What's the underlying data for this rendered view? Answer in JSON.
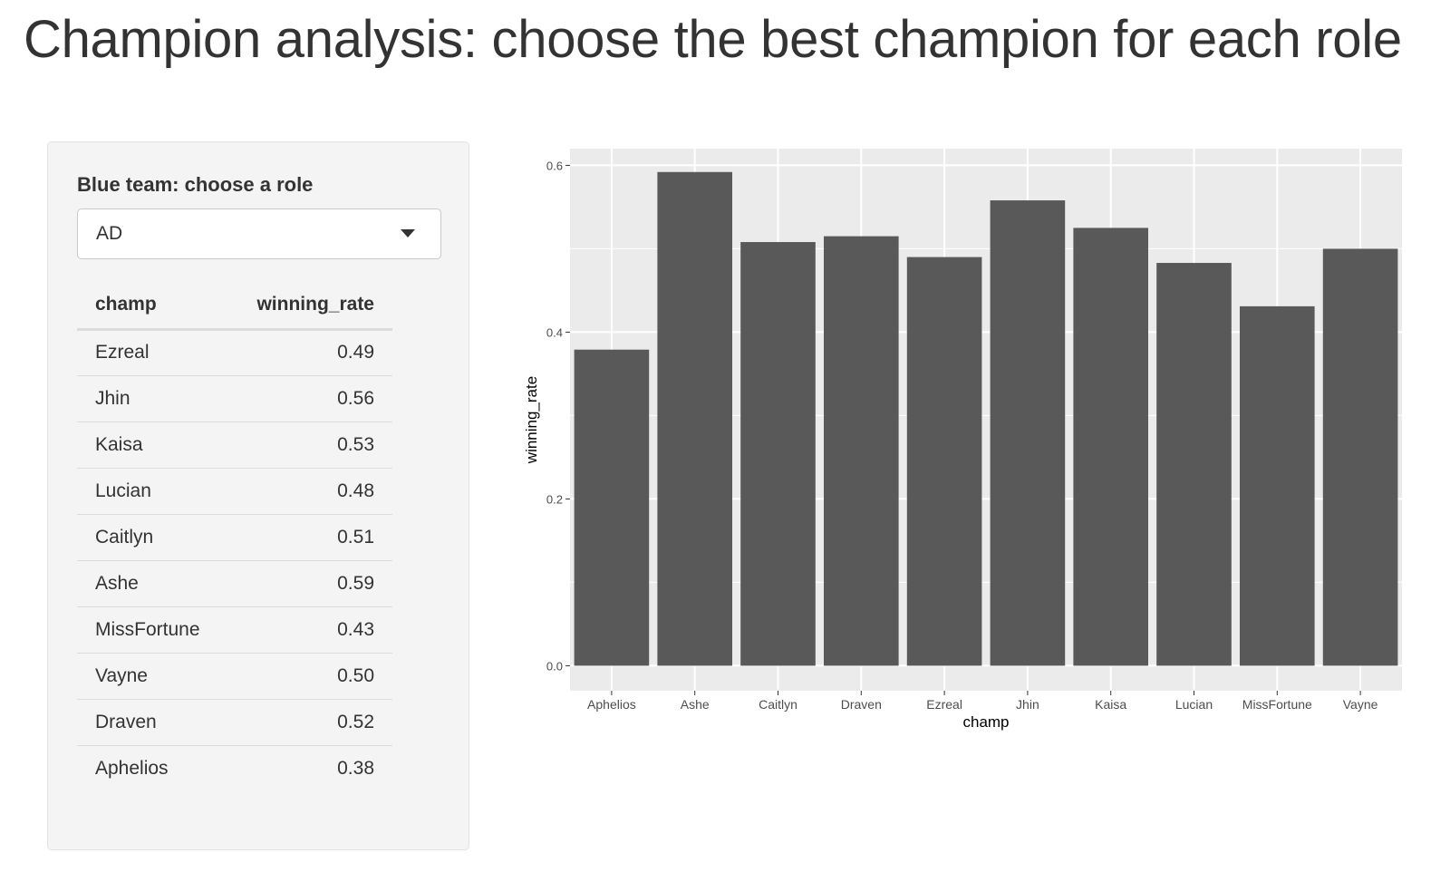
{
  "page": {
    "title": "Champion analysis: choose the best champion for each role"
  },
  "sidebar": {
    "role_label": "Blue team: choose a role",
    "role_select_value": "AD",
    "table": {
      "columns": [
        "champ",
        "winning_rate"
      ],
      "rows": [
        {
          "champ": "Ezreal",
          "winning_rate": "0.49"
        },
        {
          "champ": "Jhin",
          "winning_rate": "0.56"
        },
        {
          "champ": "Kaisa",
          "winning_rate": "0.53"
        },
        {
          "champ": "Lucian",
          "winning_rate": "0.48"
        },
        {
          "champ": "Caitlyn",
          "winning_rate": "0.51"
        },
        {
          "champ": "Ashe",
          "winning_rate": "0.59"
        },
        {
          "champ": "MissFortune",
          "winning_rate": "0.43"
        },
        {
          "champ": "Vayne",
          "winning_rate": "0.50"
        },
        {
          "champ": "Draven",
          "winning_rate": "0.52"
        },
        {
          "champ": "Aphelios",
          "winning_rate": "0.38"
        }
      ]
    }
  },
  "chart_data": {
    "type": "bar",
    "title": "",
    "xlabel": "champ",
    "ylabel": "winning_rate",
    "categories": [
      "Aphelios",
      "Ashe",
      "Caitlyn",
      "Draven",
      "Ezreal",
      "Jhin",
      "Kaisa",
      "Lucian",
      "MissFortune",
      "Vayne"
    ],
    "values": [
      0.379,
      0.592,
      0.508,
      0.515,
      0.49,
      0.558,
      0.525,
      0.483,
      0.431,
      0.5
    ],
    "ylim": [
      -0.03,
      0.62
    ],
    "yticks": [
      0.0,
      0.2,
      0.4,
      0.6
    ],
    "ytick_labels": [
      "0.0",
      "0.2",
      "0.4",
      "0.6"
    ],
    "grid": true,
    "colors": {
      "panel": "#ebebeb",
      "grid": "#ffffff",
      "bar": "#595959",
      "axis_text": "#4d4d4d",
      "tick": "#333333"
    }
  }
}
